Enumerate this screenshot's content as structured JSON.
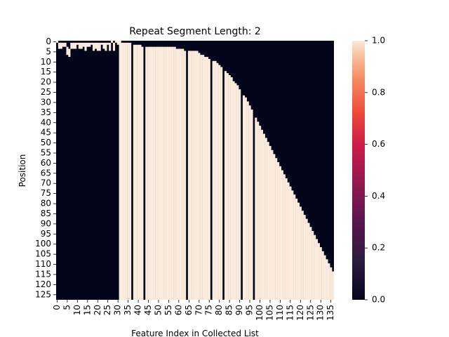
{
  "chart_data": {
    "type": "heatmap",
    "title": "Repeat Segment Length: 2",
    "xlabel": "Feature Index in Collected List",
    "ylabel": "Position",
    "n_rows": 128,
    "n_cols": 137,
    "x_ticks": [
      "0",
      "5",
      "10",
      "15",
      "20",
      "25",
      "30",
      "35",
      "40",
      "45",
      "50",
      "55",
      "60",
      "65",
      "70",
      "75",
      "80",
      "85",
      "90",
      "95",
      "100",
      "105",
      "110",
      "115",
      "120",
      "125",
      "130",
      "135"
    ],
    "y_ticks": [
      "0",
      "5",
      "10",
      "15",
      "20",
      "25",
      "30",
      "35",
      "40",
      "45",
      "50",
      "55",
      "60",
      "65",
      "70",
      "75",
      "80",
      "85",
      "90",
      "95",
      "100",
      "105",
      "110",
      "115",
      "120",
      "125"
    ],
    "colorbar": {
      "min": 0.0,
      "max": 1.0,
      "ticks": [
        "0.0",
        "0.2",
        "0.4",
        "0.6",
        "0.8",
        "1.0"
      ]
    },
    "colors": {
      "low": "#03051a",
      "high": "#faebdd"
    },
    "column_fill_start_rows": [
      0,
      1,
      1,
      1,
      1,
      3,
      4,
      1,
      1,
      1,
      1,
      1,
      1,
      1,
      1,
      1,
      1,
      1,
      1,
      1,
      1,
      1,
      1,
      1,
      1,
      1,
      1,
      0,
      1,
      0,
      0,
      0,
      1,
      1,
      1,
      1,
      1,
      1,
      2,
      2,
      2,
      2,
      3,
      3,
      3,
      3,
      3,
      3,
      3,
      3,
      3,
      3,
      3,
      3,
      3,
      3,
      3,
      3,
      3,
      4,
      4,
      4,
      4,
      5,
      5,
      5,
      5,
      5,
      5,
      5,
      6,
      7,
      7,
      8,
      8,
      9,
      9,
      10,
      10,
      11,
      12,
      13,
      14,
      15,
      16,
      17,
      18,
      20,
      21,
      22,
      24,
      25,
      27,
      28,
      30,
      32,
      34,
      36,
      38,
      40,
      42,
      44,
      46,
      48,
      50,
      52,
      54,
      56,
      58,
      60,
      62,
      64,
      66,
      68,
      70,
      72,
      74,
      76,
      78,
      80,
      82,
      84,
      86,
      88,
      90,
      92,
      94,
      96,
      98,
      100,
      102,
      104,
      106,
      108,
      110,
      112,
      114
    ],
    "sparse_cells_note": "Left columns (0-30) are mostly zero with scattered ones near the top; a staircase of ones descends to the right."
  }
}
